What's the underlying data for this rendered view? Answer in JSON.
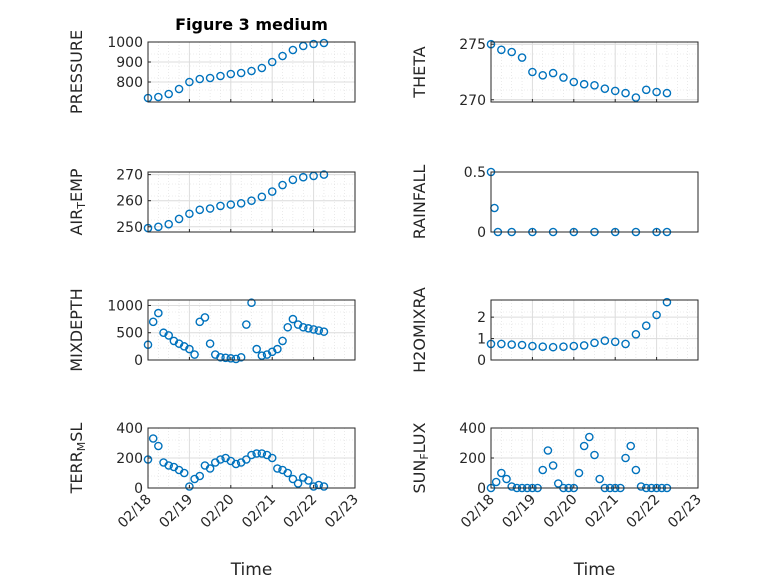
{
  "figure": {
    "title": "Figure 3 medium",
    "accent": "#0072bd"
  },
  "chart_data": [
    {
      "type": "scatter",
      "title": "Figure 3 medium",
      "xlabel": "",
      "ylabel": "PRESSURE",
      "xlim": [
        "02/18",
        "02/23"
      ],
      "ylim": [
        700,
        1000
      ],
      "yticks": [
        800,
        900,
        1000
      ],
      "grid": true,
      "x": [
        "02/18 00:00",
        "02/18 06:00",
        "02/18 12:00",
        "02/18 18:00",
        "02/19 00:00",
        "02/19 06:00",
        "02/19 12:00",
        "02/19 18:00",
        "02/20 00:00",
        "02/20 06:00",
        "02/20 12:00",
        "02/20 18:00",
        "02/21 00:00",
        "02/21 06:00",
        "02/21 12:00",
        "02/21 18:00",
        "02/22 00:00",
        "02/22 06:00"
      ],
      "y": [
        720,
        725,
        740,
        765,
        800,
        815,
        820,
        830,
        840,
        845,
        855,
        870,
        900,
        930,
        960,
        980,
        990,
        995
      ]
    },
    {
      "type": "scatter",
      "xlabel": "",
      "ylabel": "THETA",
      "xlim": [
        "02/18",
        "02/23"
      ],
      "ylim": [
        269.8,
        275.2
      ],
      "yticks": [
        270,
        275
      ],
      "grid": true,
      "x": [
        "02/18 00:00",
        "02/18 06:00",
        "02/18 12:00",
        "02/18 18:00",
        "02/19 00:00",
        "02/19 06:00",
        "02/19 12:00",
        "02/19 18:00",
        "02/20 00:00",
        "02/20 06:00",
        "02/20 12:00",
        "02/20 18:00",
        "02/21 00:00",
        "02/21 06:00",
        "02/21 12:00",
        "02/21 18:00",
        "02/22 00:00",
        "02/22 06:00"
      ],
      "y": [
        275,
        274.5,
        274.3,
        273.8,
        272.5,
        272.2,
        272.4,
        272.0,
        271.6,
        271.4,
        271.3,
        271.0,
        270.8,
        270.6,
        270.2,
        270.9,
        270.7,
        270.6
      ]
    },
    {
      "type": "scatter",
      "xlabel": "",
      "ylabel": "AIR_TEMP",
      "xlim": [
        "02/18",
        "02/23"
      ],
      "ylim": [
        248,
        271
      ],
      "yticks": [
        250,
        260,
        270
      ],
      "grid": true,
      "x": [
        "02/18 00:00",
        "02/18 06:00",
        "02/18 12:00",
        "02/18 18:00",
        "02/19 00:00",
        "02/19 06:00",
        "02/19 12:00",
        "02/19 18:00",
        "02/20 00:00",
        "02/20 06:00",
        "02/20 12:00",
        "02/20 18:00",
        "02/21 00:00",
        "02/21 06:00",
        "02/21 12:00",
        "02/21 18:00",
        "02/22 00:00",
        "02/22 06:00"
      ],
      "y": [
        249.5,
        250,
        251,
        253,
        255,
        256.5,
        257,
        258,
        258.5,
        259,
        260,
        261.5,
        263.5,
        266,
        268,
        269,
        269.5,
        270
      ]
    },
    {
      "type": "scatter",
      "xlabel": "",
      "ylabel": "RAINFALL",
      "xlim": [
        "02/18",
        "02/23"
      ],
      "ylim": [
        0,
        0.5
      ],
      "yticks": [
        0,
        0.5
      ],
      "grid": false,
      "x": [
        "02/18 00:00",
        "02/18 02:00",
        "02/18 04:00",
        "02/18 12:00",
        "02/19 00:00",
        "02/19 12:00",
        "02/20 00:00",
        "02/20 12:00",
        "02/21 00:00",
        "02/21 12:00",
        "02/22 00:00",
        "02/22 06:00"
      ],
      "y": [
        0.5,
        0.2,
        0,
        0,
        0,
        0,
        0,
        0,
        0,
        0,
        0,
        0
      ]
    },
    {
      "type": "scatter",
      "xlabel": "",
      "ylabel": "MIXDEPTH",
      "xlim": [
        "02/18",
        "02/23"
      ],
      "ylim": [
        0,
        1100
      ],
      "yticks": [
        0,
        500,
        1000
      ],
      "grid": true,
      "x": [
        "02/18 00:00",
        "02/18 03:00",
        "02/18 06:00",
        "02/18 09:00",
        "02/18 12:00",
        "02/18 15:00",
        "02/18 18:00",
        "02/18 21:00",
        "02/19 00:00",
        "02/19 03:00",
        "02/19 06:00",
        "02/19 09:00",
        "02/19 12:00",
        "02/19 15:00",
        "02/19 18:00",
        "02/19 21:00",
        "02/20 00:00",
        "02/20 03:00",
        "02/20 06:00",
        "02/20 09:00",
        "02/20 12:00",
        "02/20 15:00",
        "02/20 18:00",
        "02/20 21:00",
        "02/21 00:00",
        "02/21 03:00",
        "02/21 06:00",
        "02/21 09:00",
        "02/21 12:00",
        "02/21 15:00",
        "02/21 18:00",
        "02/21 21:00",
        "02/22 00:00",
        "02/22 03:00",
        "02/22 06:00"
      ],
      "y": [
        280,
        700,
        860,
        500,
        450,
        350,
        300,
        250,
        200,
        100,
        700,
        780,
        300,
        100,
        50,
        40,
        30,
        20,
        50,
        650,
        1050,
        200,
        80,
        100,
        150,
        200,
        350,
        600,
        750,
        650,
        600,
        580,
        560,
        540,
        520
      ]
    },
    {
      "type": "scatter",
      "xlabel": "",
      "ylabel": "H2OMIXRA",
      "xlim": [
        "02/18",
        "02/23"
      ],
      "ylim": [
        0,
        2.8
      ],
      "yticks": [
        0,
        1,
        2
      ],
      "grid": true,
      "x": [
        "02/18 00:00",
        "02/18 06:00",
        "02/18 12:00",
        "02/18 18:00",
        "02/19 00:00",
        "02/19 06:00",
        "02/19 12:00",
        "02/19 18:00",
        "02/20 00:00",
        "02/20 06:00",
        "02/20 12:00",
        "02/20 18:00",
        "02/21 00:00",
        "02/21 06:00",
        "02/21 12:00",
        "02/21 18:00",
        "02/22 00:00",
        "02/22 06:00"
      ],
      "y": [
        0.75,
        0.75,
        0.72,
        0.7,
        0.65,
        0.62,
        0.6,
        0.62,
        0.65,
        0.68,
        0.8,
        0.9,
        0.85,
        0.75,
        1.2,
        1.6,
        2.1,
        2.7
      ]
    },
    {
      "type": "scatter",
      "xlabel": "Time",
      "ylabel": "TERR_MSL",
      "xlim": [
        "02/18",
        "02/23"
      ],
      "ylim": [
        0,
        400
      ],
      "yticks": [
        0,
        200,
        400
      ],
      "xticks": [
        "02/18",
        "02/19",
        "02/20",
        "02/21",
        "02/22",
        "02/23"
      ],
      "grid": true,
      "x": [
        "02/18 00:00",
        "02/18 03:00",
        "02/18 06:00",
        "02/18 09:00",
        "02/18 12:00",
        "02/18 15:00",
        "02/18 18:00",
        "02/18 21:00",
        "02/19 00:00",
        "02/19 03:00",
        "02/19 06:00",
        "02/19 09:00",
        "02/19 12:00",
        "02/19 15:00",
        "02/19 18:00",
        "02/19 21:00",
        "02/20 00:00",
        "02/20 03:00",
        "02/20 06:00",
        "02/20 09:00",
        "02/20 12:00",
        "02/20 15:00",
        "02/20 18:00",
        "02/20 21:00",
        "02/21 00:00",
        "02/21 03:00",
        "02/21 06:00",
        "02/21 09:00",
        "02/21 12:00",
        "02/21 15:00",
        "02/21 18:00",
        "02/21 21:00",
        "02/22 00:00",
        "02/22 03:00",
        "02/22 06:00"
      ],
      "y": [
        190,
        330,
        280,
        170,
        150,
        140,
        120,
        100,
        10,
        60,
        80,
        150,
        130,
        170,
        190,
        200,
        180,
        160,
        170,
        190,
        220,
        230,
        230,
        220,
        200,
        130,
        120,
        100,
        60,
        30,
        70,
        50,
        10,
        20,
        10
      ]
    },
    {
      "type": "scatter",
      "xlabel": "Time",
      "ylabel": "SUN_FLUX",
      "xlim": [
        "02/18",
        "02/23"
      ],
      "ylim": [
        0,
        400
      ],
      "yticks": [
        0,
        200,
        400
      ],
      "xticks": [
        "02/18",
        "02/19",
        "02/20",
        "02/21",
        "02/22",
        "02/23"
      ],
      "grid": true,
      "x": [
        "02/18 00:00",
        "02/18 03:00",
        "02/18 06:00",
        "02/18 09:00",
        "02/18 12:00",
        "02/18 15:00",
        "02/18 18:00",
        "02/18 21:00",
        "02/19 00:00",
        "02/19 03:00",
        "02/19 06:00",
        "02/19 09:00",
        "02/19 12:00",
        "02/19 15:00",
        "02/19 18:00",
        "02/19 21:00",
        "02/20 00:00",
        "02/20 03:00",
        "02/20 06:00",
        "02/20 09:00",
        "02/20 12:00",
        "02/20 15:00",
        "02/20 18:00",
        "02/20 21:00",
        "02/21 00:00",
        "02/21 03:00",
        "02/21 06:00",
        "02/21 09:00",
        "02/21 12:00",
        "02/21 15:00",
        "02/21 18:00",
        "02/21 21:00",
        "02/22 00:00",
        "02/22 03:00",
        "02/22 06:00"
      ],
      "y": [
        0,
        40,
        100,
        60,
        10,
        0,
        0,
        0,
        0,
        0,
        120,
        250,
        150,
        30,
        0,
        0,
        0,
        100,
        280,
        340,
        220,
        60,
        0,
        0,
        0,
        0,
        200,
        280,
        120,
        10,
        0,
        0,
        0,
        0,
        0
      ]
    }
  ]
}
